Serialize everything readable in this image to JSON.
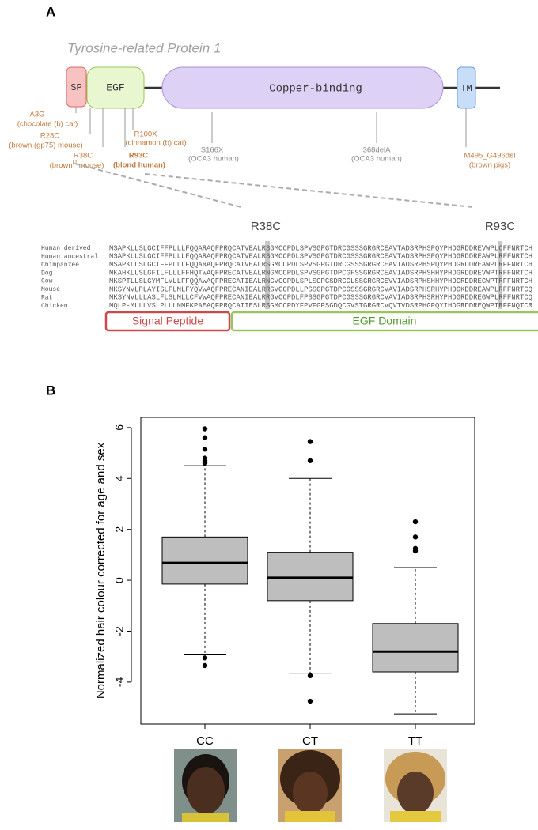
{
  "panel_a": {
    "label": "A",
    "title": "Tyrosine-related Protein 1",
    "domains": [
      "SP",
      "EGF",
      "Copper-binding",
      "TM"
    ],
    "mutations": [
      {
        "name": "A3G",
        "note": "(chocolate (b) cat)"
      },
      {
        "name": "R28C",
        "note": "(brown (gp75) mouse)"
      },
      {
        "name": "R38C",
        "note": "(brown",
        "note_sup": "Lt",
        "note_end": " mouse)"
      },
      {
        "name": "R100X",
        "note": "(cinnamon (b) cat)"
      },
      {
        "name": "R93C",
        "note": "(blond human)"
      },
      {
        "name": "S166X",
        "note": "(OCA3 human)"
      },
      {
        "name": "368delA",
        "note": "(OCA3 human)"
      },
      {
        "name": "M495_G496del",
        "note": "(brown pigs)"
      }
    ],
    "zoom_labels": [
      "R38C",
      "R93C"
    ],
    "alignment": [
      {
        "species": "Human derived",
        "sequence": "MSAPKLLSLGCIFFPLLLFQQARAQFPRQCATVEALRSGMCCPDLSPVSGPGTDRCGSSSGRGRCEAVTADSRPHSPQYPHDGRDDREVWPLCFFNRTCH"
      },
      {
        "species": "Human ancestral",
        "sequence": "MSAPKLLSLGCIFFPLLLFQQARAQFPRQCATVEALRSGMCCPDLSPVSGPGTDRCGSSSGRGRCEAVTADSRPHSPQYPHDGRDDREAWPLRFFNRTCH"
      },
      {
        "species": "Chimpanzee",
        "sequence": "MSAPKLLSLGCIFFPLLLFQQARAQFPRQCATVEALRSGMCCPDLSPVSGPGTDRCGSSSGRGRCEAVTADSRPHSPQYPHDGRDDREAWPLRFFNRTCH"
      },
      {
        "species": "Dog",
        "sequence": "MKAHKLLSLGFILFLLLFFHQTWAQFPRECATVEALRNGMCCPDLSPVSGPGTDPCGFSSGRGRCEAVIADSRPHSHHYPHDGRDDREVWPTRFFNRTCH"
      },
      {
        "species": "Cow",
        "sequence": "MKSPTLLSLGYMFLVLLFFQQAWAQFPRECATIEALRNGVCCPDLSPLSGPGSDRCGLSSGRGRCEVVIADSRPHSHHYPHDGRDDREGWPTRFFNRTCH"
      },
      {
        "species": "Mouse",
        "sequence": "MKSYNVLPLAYISLFLMLFYQVWAQFPRECANIEALRRGVCCPDLLPSSGPGTDPCGSSSGRGRCVAVIADSRPHSRHYPHDGKDDREAWPLRFFNRTCQ"
      },
      {
        "species": "Rat",
        "sequence": "MKSYNVLLLASLFLSLMLLCFVWAQFPRECANIEALRRGVCCPDLFPSSGPGTDPCGSSSGRGRCVAVIADSRPHSRHYPHDGRDDREGWPLRFFNRTCQ"
      },
      {
        "species": "Chicken",
        "sequence": "MQLP-MLLLVSLPLLLNMFKPAEAQFPRQCATIESLRSGMCCPDYFPVFGPSGDQCGVSTGRGRCVQVTVDSRPHGPQYIHDGRDDREQWPIRFFNQTCR"
      }
    ],
    "regions": [
      "Signal Peptide",
      "EGF Domain"
    ]
  },
  "chart_data": {
    "type": "box",
    "panel_label": "B",
    "ylabel": "Normalized hair colour corrected for age and sex",
    "categories": [
      "CC",
      "CT",
      "TT"
    ],
    "color": "#bebebe",
    "boxes": [
      {
        "whislo": -2.9,
        "q1": -0.15,
        "med": 0.68,
        "q3": 1.7,
        "whishi": 4.5,
        "fliers": [
          5.95,
          5.6,
          5.15,
          4.8,
          4.7,
          4.6,
          -3.05,
          -3.35
        ]
      },
      {
        "whislo": -3.65,
        "q1": -0.8,
        "med": 0.1,
        "q3": 1.1,
        "whishi": 4.0,
        "fliers": [
          5.45,
          4.7,
          -3.75,
          -4.75
        ]
      },
      {
        "whislo": -5.25,
        "q1": -3.6,
        "med": -2.8,
        "q3": -1.7,
        "whishi": 0.5,
        "fliers": [
          2.3,
          1.7,
          1.25,
          1.15
        ]
      }
    ],
    "ylim": [
      -5.65,
      6.4
    ],
    "yticks": [
      -4,
      -2,
      0,
      2,
      4,
      6
    ]
  }
}
